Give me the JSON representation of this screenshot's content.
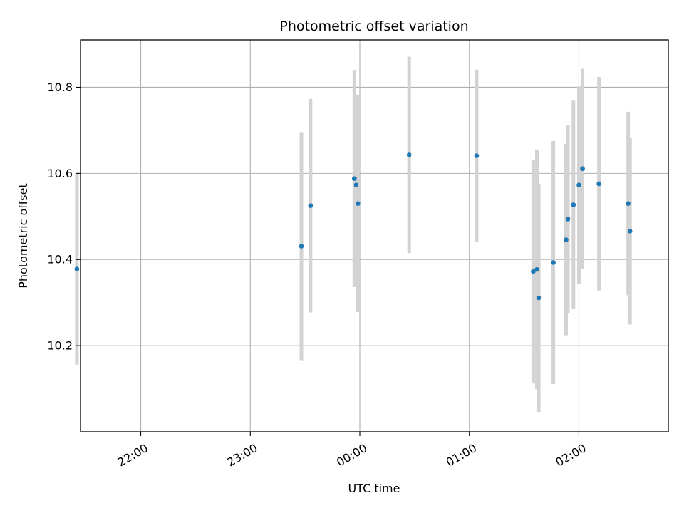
{
  "chart_data": {
    "type": "scatter",
    "title": "Photometric offset variation",
    "xlabel": "UTC time",
    "ylabel": "Photometric offset",
    "x_ticks": [
      "22:00",
      "23:00",
      "00:00",
      "01:00",
      "02:00"
    ],
    "y_ticks": [
      "10.2",
      "10.4",
      "10.6",
      "10.8"
    ],
    "xlim": [
      "21:27",
      "02:49"
    ],
    "ylim": [
      10.0,
      10.91
    ],
    "grid": true,
    "marker_color": "#1f77b4",
    "errorbar_color": "#d3d3d3",
    "points": [
      {
        "x": "21:25",
        "y": 10.378,
        "err": 0.222
      },
      {
        "x": "23:28",
        "y": 10.431,
        "err": 0.265
      },
      {
        "x": "23:33",
        "y": 10.525,
        "err": 0.248
      },
      {
        "x": "23:57",
        "y": 10.588,
        "err": 0.252
      },
      {
        "x": "23:58",
        "y": 10.573,
        "err": 0.21
      },
      {
        "x": "23:59",
        "y": 10.53,
        "err": 0.252
      },
      {
        "x": "00:27",
        "y": 10.643,
        "err": 0.228
      },
      {
        "x": "01:04",
        "y": 10.641,
        "err": 0.2
      },
      {
        "x": "01:35",
        "y": 10.372,
        "err": 0.26
      },
      {
        "x": "01:37",
        "y": 10.377,
        "err": 0.278
      },
      {
        "x": "01:38",
        "y": 10.311,
        "err": 0.265
      },
      {
        "x": "01:46",
        "y": 10.393,
        "err": 0.282
      },
      {
        "x": "01:53",
        "y": 10.446,
        "err": 0.222
      },
      {
        "x": "01:54",
        "y": 10.494,
        "err": 0.218
      },
      {
        "x": "01:57",
        "y": 10.527,
        "err": 0.242
      },
      {
        "x": "02:00",
        "y": 10.573,
        "err": 0.23
      },
      {
        "x": "02:02",
        "y": 10.611,
        "err": 0.232
      },
      {
        "x": "02:11",
        "y": 10.576,
        "err": 0.248
      },
      {
        "x": "02:27",
        "y": 10.53,
        "err": 0.213
      },
      {
        "x": "02:28",
        "y": 10.466,
        "err": 0.217
      }
    ]
  }
}
